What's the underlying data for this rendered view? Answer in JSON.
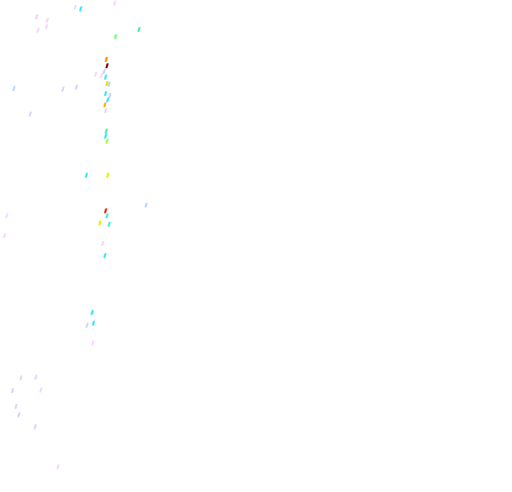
{
  "background_color": "#ffffff",
  "mark_colors": {
    "cyan": "#33e8ff",
    "light_pink": "#f5d8fb",
    "lavender": "#ead4fb",
    "green": "#6cff7a",
    "teal_green": "#44f0a0",
    "orange": "#ff8800",
    "dark_red": "#8b0000",
    "light_blue": "#b8d8ff",
    "gold": "#ffd700",
    "amber": "#ffb000",
    "lime": "#a0ff40",
    "yellow": "#e8f000",
    "red": "#ff2000",
    "aqua": "#40f0d0",
    "periwinkle": "#d8d4ff"
  }
}
